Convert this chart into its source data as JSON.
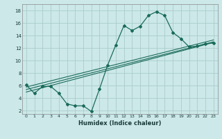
{
  "title": "",
  "xlabel": "Humidex (Indice chaleur)",
  "bg_color": "#cce8e8",
  "grid_color": "#aacccc",
  "line_color": "#1a6b5a",
  "xlim": [
    -0.5,
    23.5
  ],
  "ylim": [
    1.5,
    19
  ],
  "xticks": [
    0,
    1,
    2,
    3,
    4,
    5,
    6,
    7,
    8,
    9,
    10,
    11,
    12,
    13,
    14,
    15,
    16,
    17,
    18,
    19,
    20,
    21,
    22,
    23
  ],
  "yticks": [
    2,
    4,
    6,
    8,
    10,
    12,
    14,
    16,
    18
  ],
  "curve1_x": [
    0,
    1,
    2,
    3,
    4,
    5,
    6,
    7,
    8,
    9,
    10,
    11,
    12,
    13,
    14,
    15,
    16,
    17,
    18,
    19,
    20,
    21,
    22,
    23
  ],
  "curve1_y": [
    6.1,
    4.8,
    5.9,
    5.9,
    4.8,
    3.1,
    2.8,
    2.8,
    1.9,
    5.5,
    9.3,
    12.5,
    15.6,
    14.8,
    15.5,
    17.2,
    17.8,
    17.2,
    14.5,
    13.5,
    12.2,
    12.3,
    12.7,
    12.8
  ],
  "line1_x": [
    0,
    23
  ],
  "line1_y": [
    5.8,
    13.3
  ],
  "line2_x": [
    0,
    23
  ],
  "line2_y": [
    5.4,
    13.0
  ],
  "line3_x": [
    0,
    23
  ],
  "line3_y": [
    5.0,
    12.9
  ]
}
